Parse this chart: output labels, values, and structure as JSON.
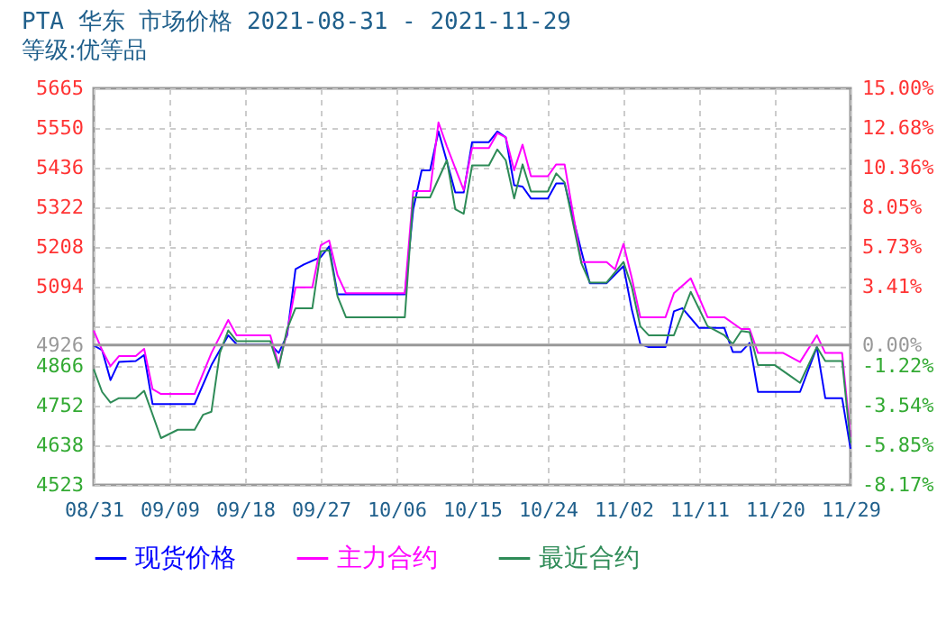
{
  "chart_data": {
    "type": "line",
    "title": "PTA 华东 市场价格 2021-08-31 - 2021-11-29",
    "subtitle": "等级:优等品",
    "xlim": [
      "2021-08-31",
      "2021-11-29"
    ],
    "xticks": [
      {
        "value": "2021-08-31",
        "label": "08/31"
      },
      {
        "value": "2021-09-09",
        "label": "09/09"
      },
      {
        "value": "2021-09-18",
        "label": "09/18"
      },
      {
        "value": "2021-09-27",
        "label": "09/27"
      },
      {
        "value": "2021-10-06",
        "label": "10/06"
      },
      {
        "value": "2021-10-15",
        "label": "10/15"
      },
      {
        "value": "2021-10-24",
        "label": "10/24"
      },
      {
        "value": "2021-11-02",
        "label": "11/02"
      },
      {
        "value": "2021-11-11",
        "label": "11/11"
      },
      {
        "value": "2021-11-20",
        "label": "11/20"
      },
      {
        "value": "2021-11-29",
        "label": "11/29"
      }
    ],
    "ylim": [
      4523,
      5665
    ],
    "yticks": [
      5665,
      5550,
      5436,
      5322,
      5208,
      5094,
      {
        "value": 4980,
        "label": null
      },
      4926,
      4866,
      4752,
      4638,
      4523
    ],
    "y2lim": [
      -8.17,
      15
    ],
    "y2ticks": [
      {
        "value": 15,
        "label": "15.00%"
      },
      {
        "value": 12.68,
        "label": "12.68%"
      },
      {
        "value": 10.36,
        "label": "10.36%"
      },
      {
        "value": 8.05,
        "label": "8.05%"
      },
      {
        "value": 5.73,
        "label": "5.73%"
      },
      {
        "value": 3.41,
        "label": "3.41%"
      },
      {
        "value": 0,
        "label": "0.00%"
      },
      {
        "value": -1.22,
        "label": "-1.22%"
      },
      {
        "value": -3.54,
        "label": "-3.54%"
      },
      {
        "value": -5.85,
        "label": "-5.85%"
      },
      {
        "value": -8.17,
        "label": "-8.17%"
      }
    ],
    "ref_lines": [
      {
        "axis": "y",
        "value": 4926,
        "color": "#999999"
      }
    ],
    "grid": true,
    "legend": "bottom",
    "marker": "none",
    "line_style": "solid",
    "series": [
      {
        "name": "现货价格",
        "color": "#0000ff",
        "x": [
          "2021-08-31",
          "2021-09-01",
          "2021-09-02",
          "2021-09-03",
          "2021-09-05",
          "2021-09-06",
          "2021-09-07",
          "2021-09-12",
          "2021-09-14",
          "2021-09-16",
          "2021-09-17",
          "2021-09-21",
          "2021-09-22",
          "2021-09-23",
          "2021-09-24",
          "2021-09-25",
          "2021-09-27",
          "2021-09-28",
          "2021-09-29",
          "2021-10-07",
          "2021-10-08",
          "2021-10-09",
          "2021-10-10",
          "2021-10-11",
          "2021-10-12",
          "2021-10-13",
          "2021-10-14",
          "2021-10-15",
          "2021-10-17",
          "2021-10-18",
          "2021-10-19",
          "2021-10-20",
          "2021-10-21",
          "2021-10-22",
          "2021-10-24",
          "2021-10-25",
          "2021-10-26",
          "2021-10-28",
          "2021-10-29",
          "2021-10-31",
          "2021-11-02",
          "2021-11-03",
          "2021-11-04",
          "2021-11-05",
          "2021-11-07",
          "2021-11-08",
          "2021-11-09",
          "2021-11-11",
          "2021-11-14",
          "2021-11-15",
          "2021-11-16",
          "2021-11-17",
          "2021-11-18",
          "2021-11-23",
          "2021-11-25",
          "2021-11-26",
          "2021-11-28",
          "2021-11-29"
        ],
        "values": [
          4925,
          4911,
          4825,
          4877,
          4880,
          4897,
          4756,
          4756,
          4868,
          4954,
          4928,
          4928,
          4903,
          4954,
          5144,
          5158,
          5179,
          5210,
          5072,
          5072,
          5317,
          5429,
          5429,
          5541,
          5455,
          5365,
          5365,
          5510,
          5510,
          5541,
          5524,
          5386,
          5382,
          5348,
          5348,
          5391,
          5391,
          5196,
          5104,
          5104,
          5153,
          5027,
          4929,
          4920,
          4920,
          5023,
          5032,
          4975,
          4975,
          4906,
          4906,
          4932,
          4791,
          4791,
          4920,
          4773,
          4773,
          4627
        ]
      },
      {
        "name": "主力合约",
        "color": "#ff00ff",
        "x": [
          "2021-08-31",
          "2021-09-01",
          "2021-09-02",
          "2021-09-03",
          "2021-09-05",
          "2021-09-06",
          "2021-09-07",
          "2021-09-08",
          "2021-09-12",
          "2021-09-14",
          "2021-09-16",
          "2021-09-17",
          "2021-09-21",
          "2021-09-22",
          "2021-09-23",
          "2021-09-24",
          "2021-09-26",
          "2021-09-27",
          "2021-09-28",
          "2021-09-29",
          "2021-09-30",
          "2021-10-07",
          "2021-10-08",
          "2021-10-10",
          "2021-10-11",
          "2021-10-12",
          "2021-10-14",
          "2021-10-15",
          "2021-10-17",
          "2021-10-18",
          "2021-10-19",
          "2021-10-20",
          "2021-10-21",
          "2021-10-22",
          "2021-10-24",
          "2021-10-25",
          "2021-10-26",
          "2021-10-28",
          "2021-10-31",
          "2021-11-01",
          "2021-11-02",
          "2021-11-03",
          "2021-11-04",
          "2021-11-07",
          "2021-11-08",
          "2021-11-10",
          "2021-11-12",
          "2021-11-14",
          "2021-11-16",
          "2021-11-17",
          "2021-11-18",
          "2021-11-21",
          "2021-11-23",
          "2021-11-25",
          "2021-11-26",
          "2021-11-28",
          "2021-11-29"
        ],
        "values": [
          4968,
          4911,
          4865,
          4894,
          4894,
          4915,
          4799,
          4785,
          4785,
          4903,
          4998,
          4954,
          4954,
          4868,
          4963,
          5092,
          5092,
          5213,
          5227,
          5127,
          5075,
          5075,
          5369,
          5369,
          5567,
          5498,
          5372,
          5493,
          5493,
          5536,
          5524,
          5429,
          5503,
          5412,
          5412,
          5446,
          5446,
          5165,
          5165,
          5144,
          5217,
          5118,
          5006,
          5006,
          5075,
          5118,
          5006,
          5006,
          4972,
          4972,
          4903,
          4903,
          4877,
          4954,
          4903,
          4903,
          4661
        ]
      },
      {
        "name": "最近合约",
        "color": "#2e8b57",
        "x": [
          "2021-08-31",
          "2021-09-01",
          "2021-09-02",
          "2021-09-03",
          "2021-09-05",
          "2021-09-06",
          "2021-09-08",
          "2021-09-10",
          "2021-09-12",
          "2021-09-13",
          "2021-09-14",
          "2021-09-15",
          "2021-09-16",
          "2021-09-17",
          "2021-09-21",
          "2021-09-22",
          "2021-09-23",
          "2021-09-24",
          "2021-09-26",
          "2021-09-27",
          "2021-09-28",
          "2021-09-29",
          "2021-09-30",
          "2021-10-07",
          "2021-10-08",
          "2021-10-10",
          "2021-10-12",
          "2021-10-13",
          "2021-10-14",
          "2021-10-15",
          "2021-10-17",
          "2021-10-18",
          "2021-10-19",
          "2021-10-20",
          "2021-10-21",
          "2021-10-22",
          "2021-10-24",
          "2021-10-25",
          "2021-10-26",
          "2021-10-28",
          "2021-10-29",
          "2021-10-31",
          "2021-11-02",
          "2021-11-03",
          "2021-11-04",
          "2021-11-05",
          "2021-11-08",
          "2021-11-10",
          "2021-11-12",
          "2021-11-14",
          "2021-11-15",
          "2021-11-16",
          "2021-11-17",
          "2021-11-18",
          "2021-11-20",
          "2021-11-22",
          "2021-11-23",
          "2021-11-25",
          "2021-11-26",
          "2021-11-28",
          "2021-11-29"
        ],
        "values": [
          4856,
          4791,
          4760,
          4773,
          4773,
          4794,
          4658,
          4682,
          4682,
          4725,
          4734,
          4903,
          4968,
          4937,
          4937,
          4860,
          4972,
          5032,
          5032,
          5196,
          5199,
          5066,
          5006,
          5006,
          5351,
          5351,
          5458,
          5317,
          5304,
          5443,
          5443,
          5489,
          5458,
          5348,
          5446,
          5368,
          5368,
          5420,
          5394,
          5161,
          5106,
          5106,
          5165,
          5092,
          4980,
          4954,
          4954,
          5079,
          4980,
          4954,
          4929,
          4966,
          4963,
          4868,
          4868,
          4834,
          4817,
          4920,
          4880,
          4880,
          4644
        ]
      }
    ]
  }
}
